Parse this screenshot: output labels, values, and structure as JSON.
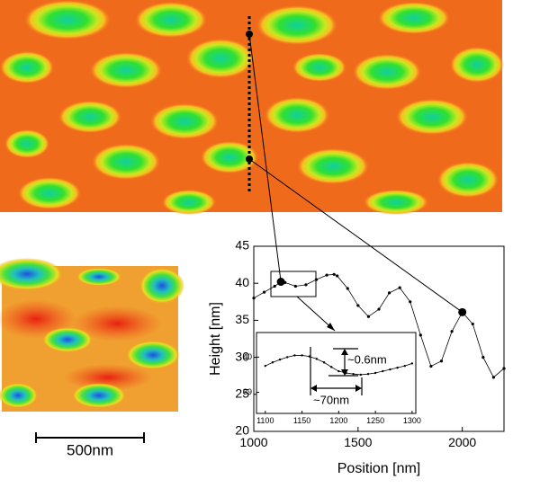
{
  "chart_data": [
    {
      "type": "line",
      "xlabel": "Position [nm]",
      "ylabel": "Height [nm]",
      "x": [
        1000,
        1050,
        1100,
        1130,
        1150,
        1200,
        1250,
        1300,
        1350,
        1385,
        1400,
        1450,
        1500,
        1550,
        1600,
        1650,
        1700,
        1750,
        1800,
        1850,
        1900,
        1950,
        2000,
        2050,
        2100,
        2150,
        2200
      ],
      "series": [
        {
          "color": "#000000",
          "values": [
            38.0,
            38.8,
            39.6,
            40.2,
            40.1,
            39.6,
            39.8,
            40.5,
            41.1,
            41.2,
            41.0,
            39.3,
            37.0,
            35.5,
            36.5,
            38.7,
            39.4,
            37.5,
            33.0,
            28.8,
            29.5,
            33.5,
            36.1,
            34.5,
            30.0,
            27.3,
            28.5
          ]
        }
      ],
      "xlim": [
        1000,
        2200
      ],
      "xticks": [
        1000,
        1500,
        2000
      ],
      "ylim": [
        20,
        45
      ],
      "yticks": [
        20,
        25,
        30,
        35,
        40,
        45
      ]
    },
    {
      "type": "line",
      "x": [
        1100,
        1110,
        1120,
        1130,
        1140,
        1150,
        1160,
        1170,
        1180,
        1190,
        1200,
        1210,
        1220,
        1230,
        1240,
        1250,
        1260,
        1270,
        1280,
        1290,
        1300
      ],
      "series": [
        {
          "color": "#000000",
          "values": [
            39.75,
            39.85,
            39.93,
            40.0,
            40.05,
            40.05,
            40.02,
            39.95,
            39.85,
            39.72,
            39.6,
            39.55,
            39.52,
            39.5,
            39.52,
            39.55,
            39.6,
            39.65,
            39.7,
            39.75,
            39.82
          ]
        }
      ],
      "xlim": [
        1088,
        1305
      ],
      "xticks": [
        1100,
        1150,
        1200,
        1250,
        1300
      ],
      "ylim": [
        38.4,
        40.7
      ],
      "yticks": [
        39,
        40
      ],
      "annotations": [
        "~0.6nm",
        "~70nm"
      ]
    }
  ],
  "figure": {
    "scale_bar": "500nm"
  }
}
